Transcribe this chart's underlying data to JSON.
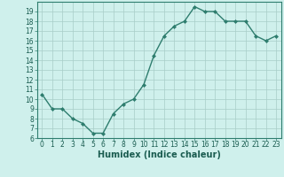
{
  "x": [
    0,
    1,
    2,
    3,
    4,
    5,
    6,
    7,
    8,
    9,
    10,
    11,
    12,
    13,
    14,
    15,
    16,
    17,
    18,
    19,
    20,
    21,
    22,
    23
  ],
  "y": [
    10.5,
    9.0,
    9.0,
    8.0,
    7.5,
    6.5,
    6.5,
    8.5,
    9.5,
    10.0,
    11.5,
    14.5,
    16.5,
    17.5,
    18.0,
    19.5,
    19.0,
    19.0,
    18.0,
    18.0,
    18.0,
    16.5,
    16.0,
    16.5
  ],
  "xlabel": "Humidex (Indice chaleur)",
  "line_color": "#2e7d6e",
  "marker": "D",
  "markersize": 2.0,
  "linewidth": 1.0,
  "background_color": "#cff0ec",
  "grid_color": "#a8cdc8",
  "ylim": [
    6,
    20
  ],
  "xlim": [
    -0.5,
    23.5
  ],
  "yticks": [
    6,
    7,
    8,
    9,
    10,
    11,
    12,
    13,
    14,
    15,
    16,
    17,
    18,
    19
  ],
  "xticks": [
    0,
    1,
    2,
    3,
    4,
    5,
    6,
    7,
    8,
    9,
    10,
    11,
    12,
    13,
    14,
    15,
    16,
    17,
    18,
    19,
    20,
    21,
    22,
    23
  ],
  "tick_fontsize": 5.5,
  "xlabel_fontsize": 7.0,
  "tick_color": "#1a5c50",
  "spine_color": "#2e7d6e"
}
